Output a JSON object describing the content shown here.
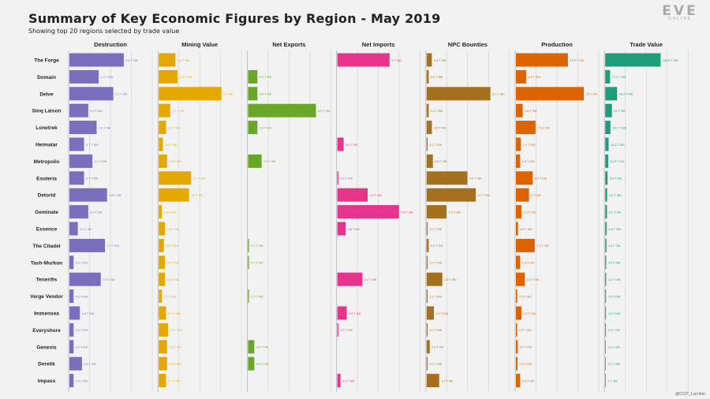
{
  "header": {
    "title": "Summary of Key Economic Figures by Region - May 2019",
    "subtitle": "Showing top 20 regions selected by trade value"
  },
  "logo": {
    "main": "EVE",
    "sub": "ONLINE"
  },
  "credit": "@CCP_Larrikin",
  "colors": {
    "background": "#f2f2f2",
    "gridline": "#d6d6d6",
    "Destruction": "#7a6fbd",
    "Mining Value": "#e5a800",
    "Net Exports": "#6aa628",
    "Net Imports": "#e6348c",
    "NPC Bounties": "#a5711e",
    "Production": "#dd6300",
    "Trade Value": "#1e9d7a"
  },
  "chart_data": {
    "type": "bar",
    "orientation": "horizontal",
    "title": "Summary of Key Economic Figures by Region - May 2019",
    "categories": [
      "The Forge",
      "Domain",
      "Delve",
      "Sinq Laison",
      "Lonetrek",
      "Heimatar",
      "Metropolis",
      "Esoteria",
      "Detorid",
      "Geminate",
      "Essence",
      "The Citadel",
      "Tash-Murkon",
      "Tenerifis",
      "Verge Vendor",
      "Immensea",
      "Everyshore",
      "Genesis",
      "Derelik",
      "Impass"
    ],
    "series": [
      {
        "name": "Destruction",
        "xlim": [
          0,
          4
        ],
        "values": [
          2.6,
          1.4,
          2.1,
          0.9,
          1.3,
          0.7,
          1.1,
          0.7,
          1.8,
          0.9,
          0.4,
          1.7,
          0.2,
          1.5,
          0.2,
          0.5,
          0.2,
          0.2,
          0.6,
          0.2
        ],
        "labels": [
          "2.6 T ISK",
          "1.4 T ISK",
          "2.1 T ISK",
          "0.9 T ISK",
          "1.3 T ISK",
          "0.7 T ISK",
          "1.1 T ISK",
          "0.7 T ISK",
          "1.8 T ISK",
          "0.9 T ISK",
          "0.4 T ISK",
          "1.7 T ISK",
          "0.2 T ISK",
          "1.5 T ISK",
          "0.2 T ISK",
          "0.5 T ISK",
          "0.2 T ISK",
          "0.2 T ISK",
          "0.6 T ISK",
          "0.2 T ISK"
        ]
      },
      {
        "name": "Mining Value",
        "xlim": [
          0,
          8
        ],
        "values": [
          1.6,
          1.8,
          6.0,
          1.1,
          0.7,
          0.4,
          0.8,
          3.1,
          2.9,
          0.3,
          0.6,
          0.5,
          0.6,
          0.6,
          0.3,
          0.7,
          0.9,
          0.8,
          0.8,
          0.7
        ],
        "labels": [
          "1.6 T ISK",
          "1.8 T ISK",
          "6 T ISK",
          "1.1 T ISK",
          "0.7 T ISK",
          "0.4 T ISK",
          "0.8 T ISK",
          "3.1 T ISK",
          "2.9 T ISK",
          "0.3 T ISK",
          "0.6 T ISK",
          "0.5 T ISK",
          "0.6 T ISK",
          "0.6 T ISK",
          "0.3 T ISK",
          "0.7 T ISK",
          "0.9 T ISK",
          "0.8 T ISK",
          "0.8 T ISK",
          "0.7 T ISK"
        ]
      },
      {
        "name": "Net Exports",
        "xlim": [
          0,
          8
        ],
        "values": [
          0,
          0.9,
          0.9,
          6.5,
          0.9,
          0,
          1.3,
          0,
          0,
          0,
          0,
          0.1,
          0.1,
          0,
          0.1,
          0,
          0,
          0.6,
          0.6,
          0
        ],
        "labels": [
          "",
          "0.9 T ISK",
          "0.9 T ISK",
          "6.5 T ISK",
          "0.9 T ISK",
          "",
          "1.3 T ISK",
          "",
          "",
          "",
          "",
          "0.1 T ISK",
          "0.1 T ISK",
          "",
          "0.1 T ISK",
          "",
          "",
          "0.6 T ISK",
          "0.6 T ISK",
          ""
        ]
      },
      {
        "name": "Net Imports",
        "xlim": [
          0,
          8
        ],
        "values": [
          5.0,
          0,
          0,
          0,
          0,
          0.6,
          0,
          0.1,
          2.9,
          5.9,
          0.8,
          0,
          0,
          2.4,
          0,
          0.9,
          0.1,
          0,
          0,
          0.3
        ],
        "labels": [
          "5 T ISK",
          "",
          "",
          "",
          "",
          "0.6 T ISK",
          "",
          "0.1 T ISK",
          "2.9 T ISK",
          "5.9 T ISK",
          "0.8 T ISK",
          "",
          "",
          "2.4 T ISK",
          "",
          "0.9 T ISK",
          "0.1 T ISK",
          "",
          "",
          "0.3 T ISK"
        ]
      },
      {
        "name": "NPC Bounties",
        "xlim": [
          0,
          8
        ],
        "values": [
          0.5,
          0.2,
          6.1,
          0.2,
          0.5,
          0.1,
          0.6,
          3.9,
          4.7,
          1.9,
          0.1,
          0.2,
          0.1,
          1.5,
          0.1,
          0.7,
          0.1,
          0.3,
          0.1,
          1.2
        ],
        "labels": [
          "0.5 T ISK",
          "0.2 T ISK",
          "6.1 T ISK",
          "0.2 T ISK",
          "0.5 T ISK",
          "0.1 T ISK",
          "0.6 T ISK",
          "3.9 T ISK",
          "4.7 T ISK",
          "1.9 T ISK",
          "0.1 T ISK",
          "0.2 T ISK",
          "0.1 T ISK",
          "1.5 T ISK",
          "0.1 T ISK",
          "0.7 T ISK",
          "0.1 T ISK",
          "0.3 T ISK",
          "0.1 T ISK",
          "1.2 T ISK"
        ]
      },
      {
        "name": "Production",
        "xlim": [
          0,
          32
        ],
        "values": [
          19.9,
          3.9,
          26.0,
          2.6,
          7.5,
          1.9,
          1.6,
          6.4,
          5.0,
          2.1,
          0.8,
          7.2,
          1.6,
          3.4,
          0.5,
          2.1,
          0.5,
          0.7,
          0.6,
          1.6
        ],
        "labels": [
          "19.9 T ISK",
          "3.9 T ISK",
          "26 T ISK",
          "2.6 T ISK",
          "7.5 T ISK",
          "1.9 T ISK",
          "1.6 T ISK",
          "6.4 T ISK",
          "5 T ISK",
          "2.1 T ISK",
          "0.8 T ISK",
          "7.2 T ISK",
          "1.6 T ISK",
          "3.4 T ISK",
          "0.5 T ISK",
          "2.1 T ISK",
          "0.5 T ISK",
          "0.7 T ISK",
          "0.6 T ISK",
          "1.6 T ISK"
        ]
      },
      {
        "name": "Trade Value",
        "xlim": [
          0,
          300
        ],
        "values": [
          198.6,
          17.4,
          42.5,
          24.0,
          18.7,
          12.3,
          10.9,
          8.5,
          6.9,
          6.2,
          4.8,
          4.4,
          3.5,
          3.3,
          2.9,
          2.8,
          2.5,
          2.1,
          2.1,
          2.0
        ],
        "labels": [
          "198.6 T ISK",
          "17.4 T ISK",
          "42.5 T ISK",
          "24 T ISK",
          "18.7 T ISK",
          "12.3 T ISK",
          "10.9 T ISK",
          "8.5 T ISK",
          "6.9 T ISK",
          "6.2 T ISK",
          "4.8 T ISK",
          "4.4 T ISK",
          "3.5 T ISK",
          "3.3 T ISK",
          "2.9 T ISK",
          "2.8 T ISK",
          "2.5 T ISK",
          "2.1 T ISK",
          "2.1 T ISK",
          "2 T ISK"
        ]
      }
    ]
  }
}
